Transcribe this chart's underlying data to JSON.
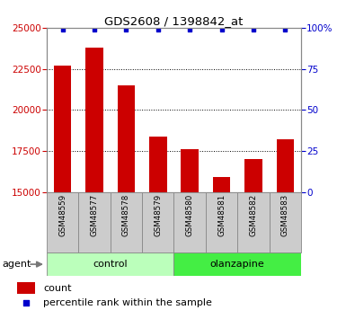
{
  "title": "GDS2608 / 1398842_at",
  "samples": [
    "GSM48559",
    "GSM48577",
    "GSM48578",
    "GSM48579",
    "GSM48580",
    "GSM48581",
    "GSM48582",
    "GSM48583"
  ],
  "counts": [
    22700,
    23800,
    21500,
    18400,
    17600,
    15900,
    17000,
    18200
  ],
  "percentiles": [
    99,
    99,
    99,
    99,
    99,
    99,
    99,
    99
  ],
  "ylim_left": [
    15000,
    25000
  ],
  "ylim_right": [
    0,
    100
  ],
  "yticks_left": [
    15000,
    17500,
    20000,
    22500,
    25000
  ],
  "yticks_right": [
    0,
    25,
    50,
    75,
    100
  ],
  "bar_color": "#cc0000",
  "dot_color": "#0000cc",
  "control_color": "#bbffbb",
  "olanzapine_color": "#44ee44",
  "tick_label_color_left": "#cc0000",
  "tick_label_color_right": "#0000cc",
  "groups": [
    {
      "label": "control",
      "indices": [
        0,
        1,
        2,
        3
      ]
    },
    {
      "label": "olanzapine",
      "indices": [
        4,
        5,
        6,
        7
      ]
    }
  ],
  "legend_count_color": "#cc0000",
  "legend_percentile_color": "#0000cc",
  "agent_label": "agent",
  "xlabel_bg_color": "#cccccc",
  "plot_border_color": "#888888"
}
